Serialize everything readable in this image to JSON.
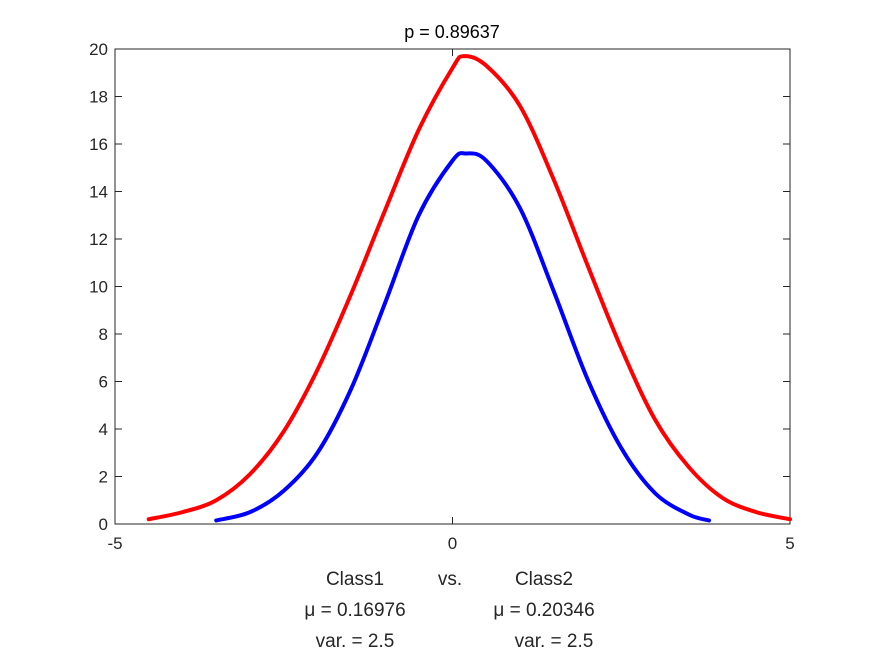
{
  "chart_data": {
    "type": "line",
    "title": "p = 0.89637",
    "xlim": [
      -5,
      5
    ],
    "ylim": [
      0,
      20
    ],
    "x_ticks": [
      -5,
      0,
      5
    ],
    "y_ticks": [
      0,
      2,
      4,
      6,
      8,
      10,
      12,
      14,
      16,
      18,
      20
    ],
    "grid": false,
    "xlabel_lines": [
      {
        "left": "Class1",
        "mid": "vs.",
        "right": "Class2"
      },
      {
        "left": "μ = 0.16976",
        "mid": "",
        "right": "μ = 0.20346"
      },
      {
        "left": "var. = 2.5",
        "mid": "",
        "right": "var. = 2.5"
      }
    ],
    "series": [
      {
        "color": "#ff0000",
        "x": [
          -4.5,
          -4.0,
          -3.5,
          -3.0,
          -2.5,
          -2.0,
          -1.5,
          -1.0,
          -0.5,
          0.0,
          0.17,
          0.5,
          1.0,
          1.5,
          2.0,
          2.5,
          3.0,
          3.5,
          4.0,
          4.5,
          5.0
        ],
        "y": [
          0.2,
          0.5,
          1.0,
          2.1,
          3.9,
          6.5,
          9.7,
          13.2,
          16.6,
          19.2,
          19.7,
          19.3,
          17.6,
          14.5,
          10.9,
          7.4,
          4.4,
          2.4,
          1.1,
          0.5,
          0.2
        ]
      },
      {
        "color": "#0000ff",
        "x": [
          -3.5,
          -3.0,
          -2.5,
          -2.0,
          -1.5,
          -1.0,
          -0.5,
          0.0,
          0.2,
          0.5,
          1.0,
          1.5,
          2.0,
          2.5,
          3.0,
          3.5,
          3.8
        ],
        "y": [
          0.15,
          0.5,
          1.4,
          3.0,
          5.7,
          9.3,
          13.0,
          15.3,
          15.6,
          15.3,
          13.3,
          9.8,
          6.1,
          3.2,
          1.3,
          0.4,
          0.15
        ]
      }
    ]
  }
}
